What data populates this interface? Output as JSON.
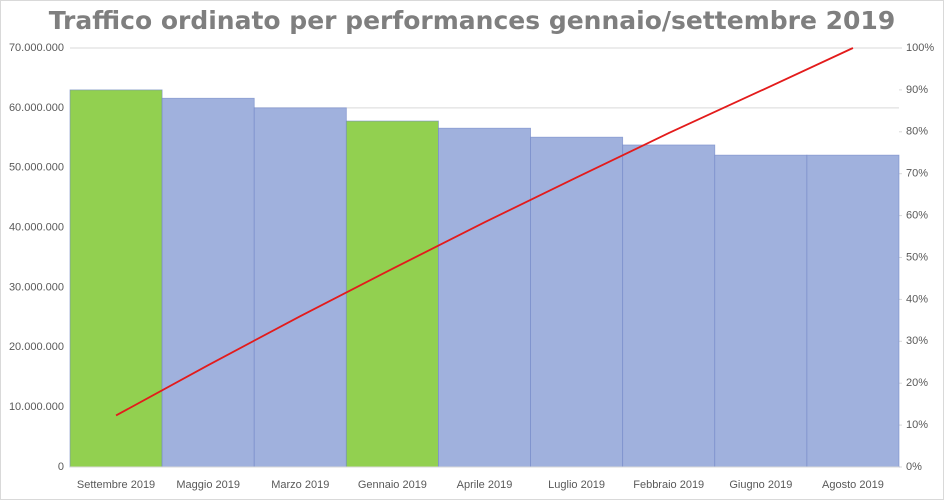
{
  "chart_data": {
    "type": "pareto",
    "title": "Traffico ordinato per performances gennaio/settembre 2019",
    "categories": [
      "Settembre 2019",
      "Maggio 2019",
      "Marzo 2019",
      "Gennaio 2019",
      "Aprile 2019",
      "Luglio 2019",
      "Febbraio 2019",
      "Giugno 2019",
      "Agosto 2019"
    ],
    "series": [
      {
        "type": "bar",
        "values": [
          63000000,
          61600000,
          60000000,
          57800000,
          56600000,
          55100000,
          53800000,
          52100000,
          52100000
        ],
        "colors": [
          "#92d050",
          "#a0b1dd",
          "#a0b1dd",
          "#92d050",
          "#a0b1dd",
          "#a0b1dd",
          "#a0b1dd",
          "#a0b1dd",
          "#a0b1dd"
        ]
      },
      {
        "type": "line",
        "axis": "y2",
        "color": "#e31b1b",
        "values": [
          12.3,
          24.3,
          36.0,
          47.3,
          58.4,
          69.1,
          79.7,
          89.8,
          100
        ]
      }
    ],
    "ylim": [
      0,
      70000000
    ],
    "yticks": [
      0,
      {
        "value": 10000000,
        "label": "10.000.000"
      },
      {
        "value": 20000000,
        "label": "20.000.000"
      },
      {
        "value": 30000000,
        "label": "30.000.000"
      },
      {
        "value": 40000000,
        "label": "40.000.000"
      },
      {
        "value": 50000000,
        "label": "50.000.000"
      },
      {
        "value": 60000000,
        "label": "60.000.000"
      },
      {
        "value": 70000000,
        "label": "70.000.000"
      }
    ],
    "y2lim": [
      0,
      100
    ],
    "y2ticks": [
      {
        "value": 0,
        "label": "0%"
      },
      {
        "value": 10,
        "label": "10%"
      },
      {
        "value": 20,
        "label": "20%"
      },
      {
        "value": 30,
        "label": "30%"
      },
      {
        "value": 40,
        "label": "40%"
      },
      {
        "value": 50,
        "label": "50%"
      },
      {
        "value": 60,
        "label": "60%"
      },
      {
        "value": 70,
        "label": "70%"
      },
      {
        "value": 80,
        "label": "80%"
      },
      {
        "value": 90,
        "label": "90%"
      },
      {
        "value": 100,
        "label": "100%"
      }
    ],
    "grid": true
  }
}
